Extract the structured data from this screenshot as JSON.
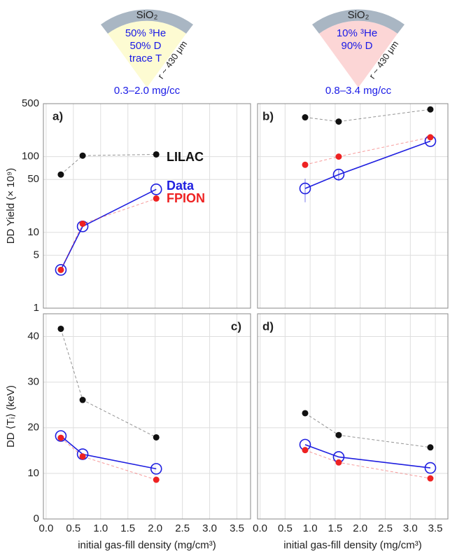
{
  "capsules": [
    {
      "shell": "SiO₂",
      "fill": [
        "50% ³He",
        "50%  D",
        "trace T"
      ],
      "radius": "r ~ 430 μm",
      "density": "0.3–2.0 mg/cc"
    },
    {
      "shell": "SiO₂",
      "fill": [
        "10% ³He",
        "90%  D"
      ],
      "radius": "r ~ 430 μm",
      "density": "0.8–3.4 mg/cc"
    }
  ],
  "chart_data": [
    {
      "type": "line",
      "panel_label": "a)",
      "ylabel": "DD Yield (× 10⁹)",
      "ylog": true,
      "grid": true,
      "legend": true,
      "x": [
        0.27,
        0.67,
        2.02
      ],
      "series": [
        {
          "name": "LILAC",
          "color": "#111111",
          "marker": "filled",
          "linestyle": "dashed",
          "values": [
            58,
            103,
            107
          ]
        },
        {
          "name": "Data",
          "color": "#1f1fe0",
          "marker": "open",
          "linestyle": "solid",
          "values": [
            3.2,
            12,
            37
          ]
        },
        {
          "name": "FPION",
          "color": "#ee2222",
          "marker": "filled",
          "linestyle": "dashed",
          "values": [
            3.2,
            13,
            28
          ]
        }
      ],
      "xlim": [
        -0.05,
        3.75
      ],
      "xticks": [
        {
          "value": 0,
          "label": "0.0"
        },
        0.5,
        {
          "value": 1,
          "label": "1.0"
        },
        1.5,
        {
          "value": 2,
          "label": "2.0"
        },
        2.5,
        {
          "value": 3,
          "label": "3.0"
        },
        3.5
      ],
      "ylim": [
        1,
        500
      ],
      "yticks": [
        1,
        5,
        10,
        50,
        100,
        500
      ]
    },
    {
      "type": "line",
      "panel_label": "b)",
      "ylog": true,
      "grid": true,
      "x": [
        0.9,
        1.57,
        3.4
      ],
      "series": [
        {
          "name": "LILAC",
          "color": "#111111",
          "marker": "filled",
          "linestyle": "dashed",
          "values": [
            330,
            290,
            420
          ]
        },
        {
          "name": "Data",
          "color": "#1f1fe0",
          "marker": "open",
          "linestyle": "solid",
          "values": [
            38,
            58,
            160
          ],
          "errors": [
            13,
            10,
            null
          ]
        },
        {
          "name": "FPION",
          "color": "#ee2222",
          "marker": "filled",
          "linestyle": "dashed",
          "values": [
            78,
            100,
            180
          ]
        }
      ],
      "xlim": [
        -0.05,
        3.75
      ],
      "xticks": [
        {
          "value": 0,
          "label": "0.0"
        },
        0.5,
        {
          "value": 1,
          "label": "1.0"
        },
        1.5,
        {
          "value": 2,
          "label": "2.0"
        },
        2.5,
        {
          "value": 3,
          "label": "3.0"
        },
        3.5
      ],
      "ylim": [
        1,
        500
      ],
      "yticks": [
        1,
        5,
        10,
        50,
        100,
        500
      ]
    },
    {
      "type": "line",
      "panel_label": "c)",
      "ylabel": "DD ⟨Tᵢ⟩ (keV)",
      "xlabel": "initial gas-fill density (mg/cm³)",
      "grid": true,
      "x": [
        0.27,
        0.67,
        2.02
      ],
      "series": [
        {
          "name": "LILAC",
          "color": "#111111",
          "marker": "filled",
          "linestyle": "dashed",
          "values": [
            41.7,
            26.1,
            17.9
          ]
        },
        {
          "name": "Data",
          "color": "#1f1fe0",
          "marker": "open",
          "linestyle": "solid",
          "values": [
            18.2,
            14.2,
            11.0
          ]
        },
        {
          "name": "FPION",
          "color": "#ee2222",
          "marker": "filled",
          "linestyle": "dashed",
          "values": [
            17.8,
            13.7,
            8.6
          ]
        }
      ],
      "xlim": [
        -0.05,
        3.75
      ],
      "xticks": [
        {
          "value": 0,
          "label": "0.0"
        },
        0.5,
        {
          "value": 1,
          "label": "1.0"
        },
        1.5,
        {
          "value": 2,
          "label": "2.0"
        },
        2.5,
        {
          "value": 3,
          "label": "3.0"
        },
        3.5
      ],
      "ylim": [
        0,
        45
      ],
      "yticks": [
        0,
        10,
        20,
        30,
        40
      ]
    },
    {
      "type": "line",
      "panel_label": "d)",
      "xlabel": "initial gas-fill density (mg/cm³)",
      "grid": true,
      "x": [
        0.9,
        1.57,
        3.4
      ],
      "series": [
        {
          "name": "LILAC",
          "color": "#111111",
          "marker": "filled",
          "linestyle": "dashed",
          "values": [
            23.2,
            18.4,
            15.7
          ]
        },
        {
          "name": "Data",
          "color": "#1f1fe0",
          "marker": "open",
          "linestyle": "solid",
          "values": [
            16.3,
            13.6,
            11.2
          ]
        },
        {
          "name": "FPION",
          "color": "#ee2222",
          "marker": "filled",
          "linestyle": "dashed",
          "values": [
            15.1,
            12.4,
            8.9
          ]
        }
      ],
      "xlim": [
        -0.05,
        3.75
      ],
      "xticks": [
        {
          "value": 0,
          "label": "0.0"
        },
        0.5,
        {
          "value": 1,
          "label": "1.0"
        },
        1.5,
        {
          "value": 2,
          "label": "2.0"
        },
        2.5,
        {
          "value": 3,
          "label": "3.0"
        },
        3.5
      ],
      "ylim": [
        0,
        45
      ],
      "yticks": [
        0,
        10,
        20,
        30,
        40
      ]
    }
  ]
}
